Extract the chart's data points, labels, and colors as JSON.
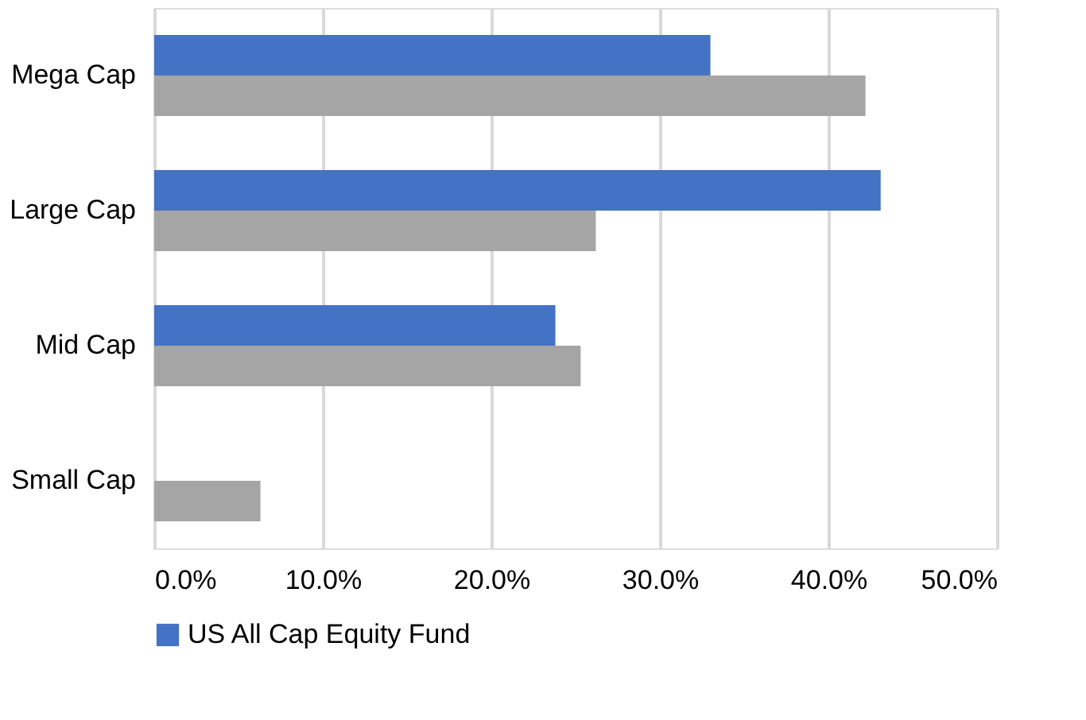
{
  "chart_data": {
    "type": "bar",
    "orientation": "horizontal",
    "categories": [
      "Mega Cap",
      "Large Cap",
      "Mid Cap",
      "Small Cap"
    ],
    "series": [
      {
        "name": "US All Cap Equity Fund",
        "color": "#4472c4",
        "values": [
          33.0,
          43.1,
          23.8,
          null
        ]
      },
      {
        "color": "#a5a5a5",
        "values": [
          42.2,
          26.2,
          25.3,
          6.3
        ]
      }
    ],
    "xlim": [
      0,
      50
    ],
    "xticks": [
      {
        "value": 0,
        "label": "0.0%"
      },
      {
        "value": 10,
        "label": "10.0%"
      },
      {
        "value": 20,
        "label": "20.0%"
      },
      {
        "value": 30,
        "label": "30.0%"
      },
      {
        "value": 40,
        "label": "40.0%"
      },
      {
        "value": 50,
        "label": "50.0%"
      }
    ],
    "grid": "x",
    "legend": "bottom"
  }
}
